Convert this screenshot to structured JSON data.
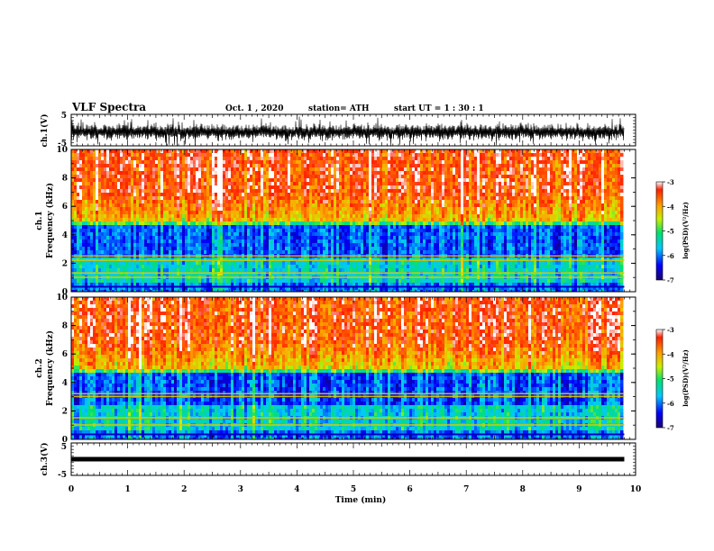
{
  "header": {
    "title": "VLF Spectra",
    "date": "Oct. 1 , 2020",
    "station": "station= ATH",
    "start": "start UT = 1 : 30 : 1"
  },
  "chart_data": {
    "type": "heatmap",
    "x_axis": {
      "label": "Time (min)",
      "range": [
        0,
        10
      ],
      "ticks": [
        0,
        1,
        2,
        3,
        4,
        5,
        6,
        7,
        8,
        9,
        10
      ],
      "data_end": 9.8
    },
    "panels": [
      {
        "id": "ch1-waveform",
        "kind": "waveform",
        "ylabel": "ch.1(V)",
        "ylim": [
          -5,
          5
        ],
        "yticks": [
          "5",
          "-5"
        ]
      },
      {
        "id": "ch1-spectrogram",
        "kind": "spectrogram",
        "ylabel_line1": "ch.1",
        "ylabel_line2": "Frequency (kHz)",
        "ylim": [
          0,
          10
        ],
        "yticks": [
          0,
          2,
          4,
          6,
          8,
          10
        ],
        "colorbar": {
          "label": "log(PSD)(V²/Hz)",
          "range": [
            -7,
            -3
          ],
          "ticks": [
            "-3",
            "-4",
            "-5",
            "-6",
            "-7"
          ]
        },
        "strong_bands_khz": [
          1.0,
          1.3,
          2.2,
          2.5
        ],
        "blue_band_khz": [
          2.5,
          4.8
        ]
      },
      {
        "id": "ch2-spectrogram",
        "kind": "spectrogram",
        "ylabel_line1": "ch.2",
        "ylabel_line2": "Frequency (kHz)",
        "ylim": [
          0,
          10
        ],
        "yticks": [
          0,
          2,
          4,
          6,
          8,
          10
        ],
        "colorbar": {
          "label": "log(PSD)(V²/Hz)",
          "range": [
            -7,
            -3
          ],
          "ticks": [
            "-3",
            "-4",
            "-5",
            "-6",
            "-7"
          ]
        },
        "strong_bands_khz": [
          1.0,
          1.5,
          3.0,
          3.2
        ],
        "blue_band_khz": [
          2.3,
          4.6
        ]
      },
      {
        "id": "ch3-waveform",
        "kind": "waveform",
        "ylabel": "ch.3(V)",
        "ylim": [
          -5,
          5
        ],
        "yticks": [
          "5",
          "-5"
        ],
        "flat_level": 0
      }
    ],
    "colormap": [
      "#1a0070",
      "#0000ff",
      "#00c8ff",
      "#00e070",
      "#c8f000",
      "#ffa000",
      "#ff2000",
      "#ffffff"
    ]
  }
}
